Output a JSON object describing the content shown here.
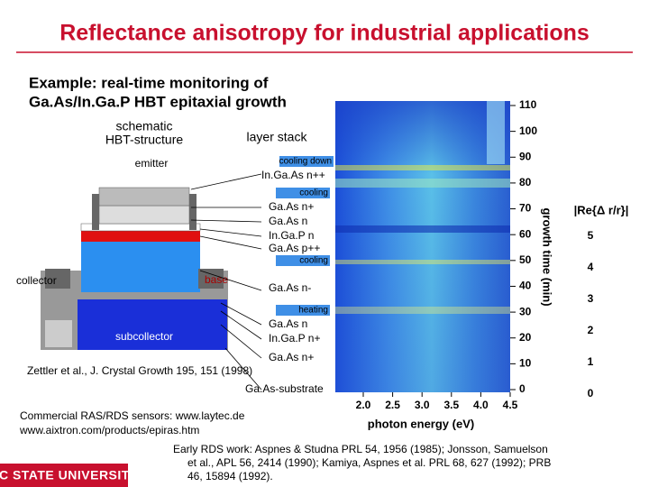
{
  "title": "Reflectance anisotropy for industrial applications",
  "example": [
    "Example: real-time monitoring of",
    "Ga.As/In.Ga.P HBT epitaxial growth"
  ],
  "schematic": {
    "heading": [
      "schematic",
      "HBT-structure"
    ],
    "emitter": "emitter",
    "collector": "collector",
    "base": "base",
    "subcollector": "subcollector"
  },
  "layer_stack": {
    "heading": "layer stack",
    "labels": [
      "cooling down",
      "In.Ga.As n++",
      "cooling",
      "Ga.As n+",
      "Ga.As n",
      "In.Ga.P n",
      "Ga.As p++",
      "cooling",
      "Ga.As n-",
      "heating",
      "Ga.As n",
      "In.Ga.P n+",
      "Ga.As n+",
      "Ga.As-substrate"
    ]
  },
  "plot": {
    "x_label": "photon energy (eV)",
    "x_ticks": [
      {
        "value": 2,
        "label": "2.0"
      },
      2.5,
      {
        "value": 3,
        "label": "3.0"
      },
      3.5,
      {
        "value": 4,
        "label": "4.0"
      },
      4.5
    ],
    "y_label": "growth time (min)",
    "y_ticks": [
      0,
      10,
      20,
      30,
      40,
      50,
      60,
      70,
      80,
      90,
      100,
      110
    ],
    "colorbar_label": "|Re{Δ r/r}|",
    "colorbar_ticks": [
      0,
      1,
      2,
      3,
      4,
      5
    ]
  },
  "citation": "Zettler et al., J. Crystal Growth 195, 151 (1998)",
  "sensors": [
    "Commercial RAS/RDS sensors: www.laytec.de",
    "www.aixtron.com/products/epiras.htm"
  ],
  "early_work": [
    "Early RDS work: Aspnes & Studna PRL 54, 1956 (1985); Jonsson, Samuelson",
    "et al., APL 56, 2414 (1990); Kamiya, Aspnes et al. PRL 68, 627 (1992); PRB",
    "46, 15894 (1992)."
  ],
  "logo": "NC STATE UNIVERSITY"
}
